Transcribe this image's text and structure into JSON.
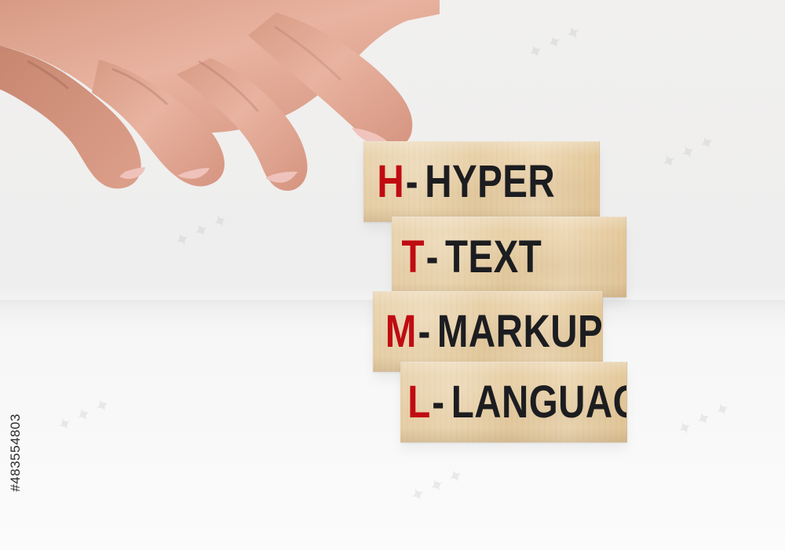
{
  "scene": {
    "blocks": [
      {
        "letter": "H",
        "dash": "-",
        "word": "HYPER"
      },
      {
        "letter": "T",
        "dash": "-",
        "word": "TEXT"
      },
      {
        "letter": "M",
        "dash": "-",
        "word": "MARKUP"
      },
      {
        "letter": "L",
        "dash": "-",
        "word": "LANGUAGE"
      }
    ],
    "stock_id": "#483554803",
    "colors": {
      "accent": "#c00b12",
      "text": "#1c1d20",
      "wood": "#e7cea3"
    }
  }
}
